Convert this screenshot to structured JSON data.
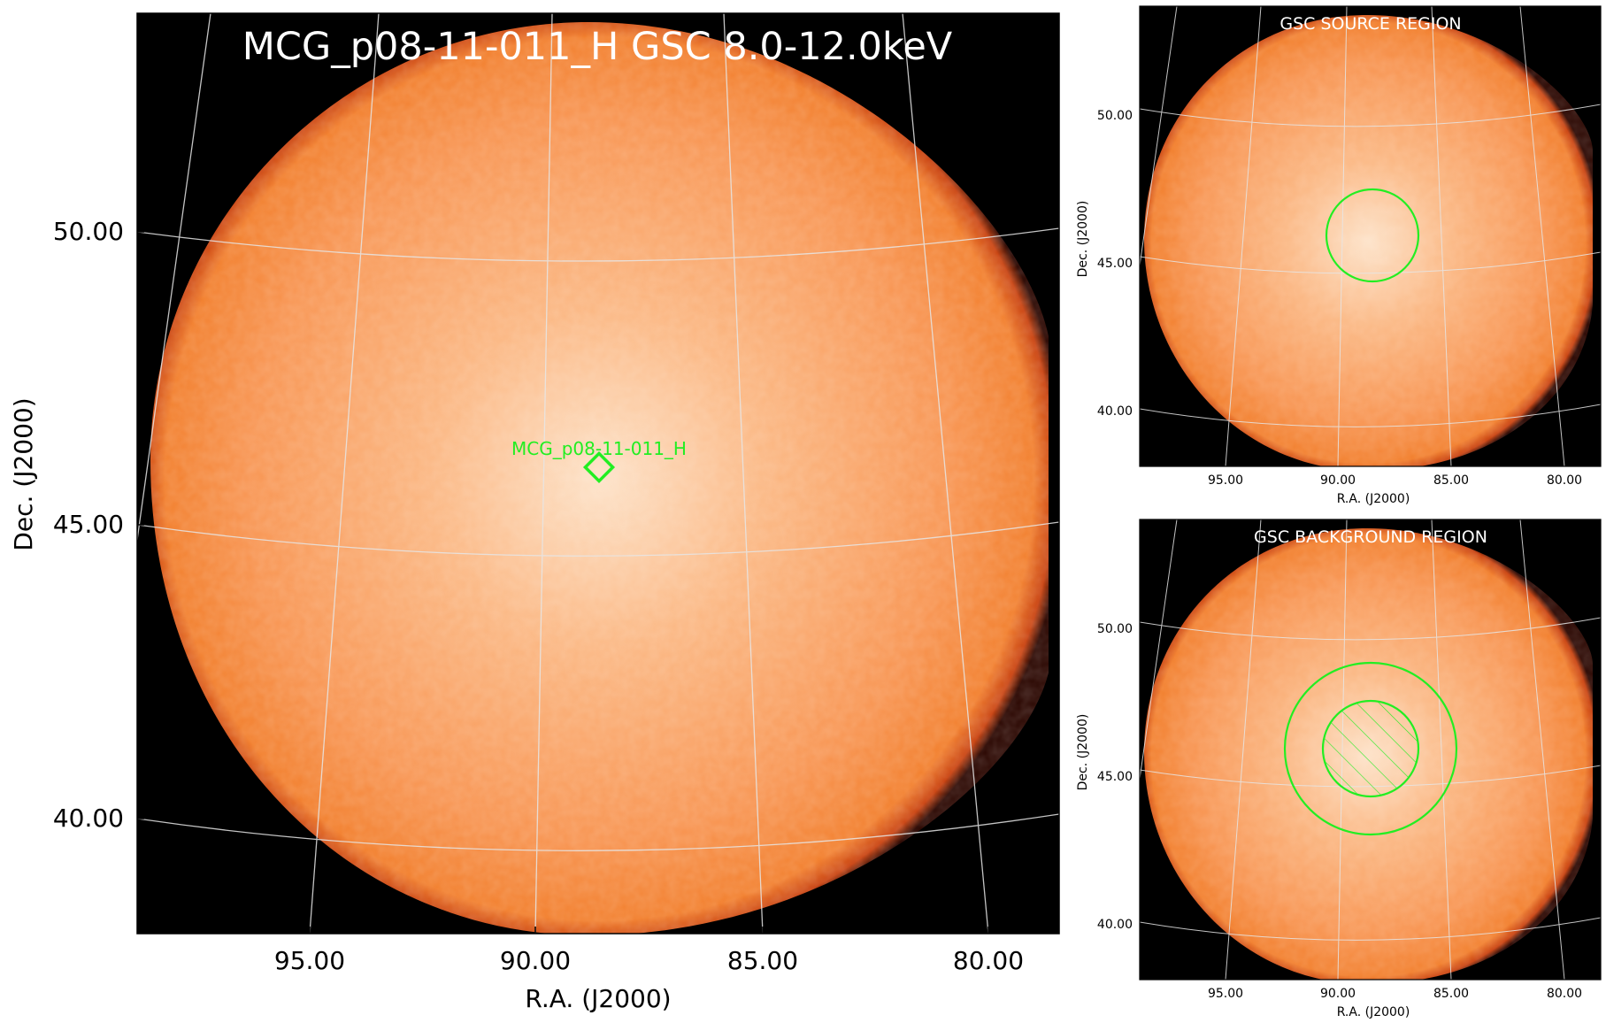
{
  "main_panel": {
    "title": "MCG_p08-11-011_H GSC 8.0-12.0keV",
    "source_label": "MCG_p08-11-011_H",
    "xlabel": "R.A. (J2000)",
    "ylabel": "Dec. (J2000)",
    "xticks": [
      "95.00",
      "90.00",
      "85.00",
      "80.00"
    ],
    "yticks": [
      "50.00",
      "45.00",
      "40.00"
    ]
  },
  "source_panel": {
    "title": "GSC SOURCE REGION",
    "xlabel": "R.A. (J2000)",
    "ylabel": "Dec. (J2000)",
    "xticks": [
      "95.00",
      "90.00",
      "85.00",
      "80.00"
    ],
    "yticks": [
      "50.00",
      "45.00",
      "40.00"
    ]
  },
  "background_panel": {
    "title": "GSC BACKGROUND REGION",
    "xlabel": "R.A. (J2000)",
    "ylabel": "Dec. (J2000)",
    "xticks": [
      "95.00",
      "90.00",
      "85.00",
      "80.00"
    ],
    "yticks": [
      "50.00",
      "45.00",
      "40.00"
    ]
  },
  "colors": {
    "background": "#000000",
    "disk_center": "#fde0c4",
    "disk_mid": "#f9a463",
    "disk_edge": "#f07b26",
    "rim": "#b12a0a",
    "grid": "#e6e6e6",
    "region": "#22ee22"
  }
}
